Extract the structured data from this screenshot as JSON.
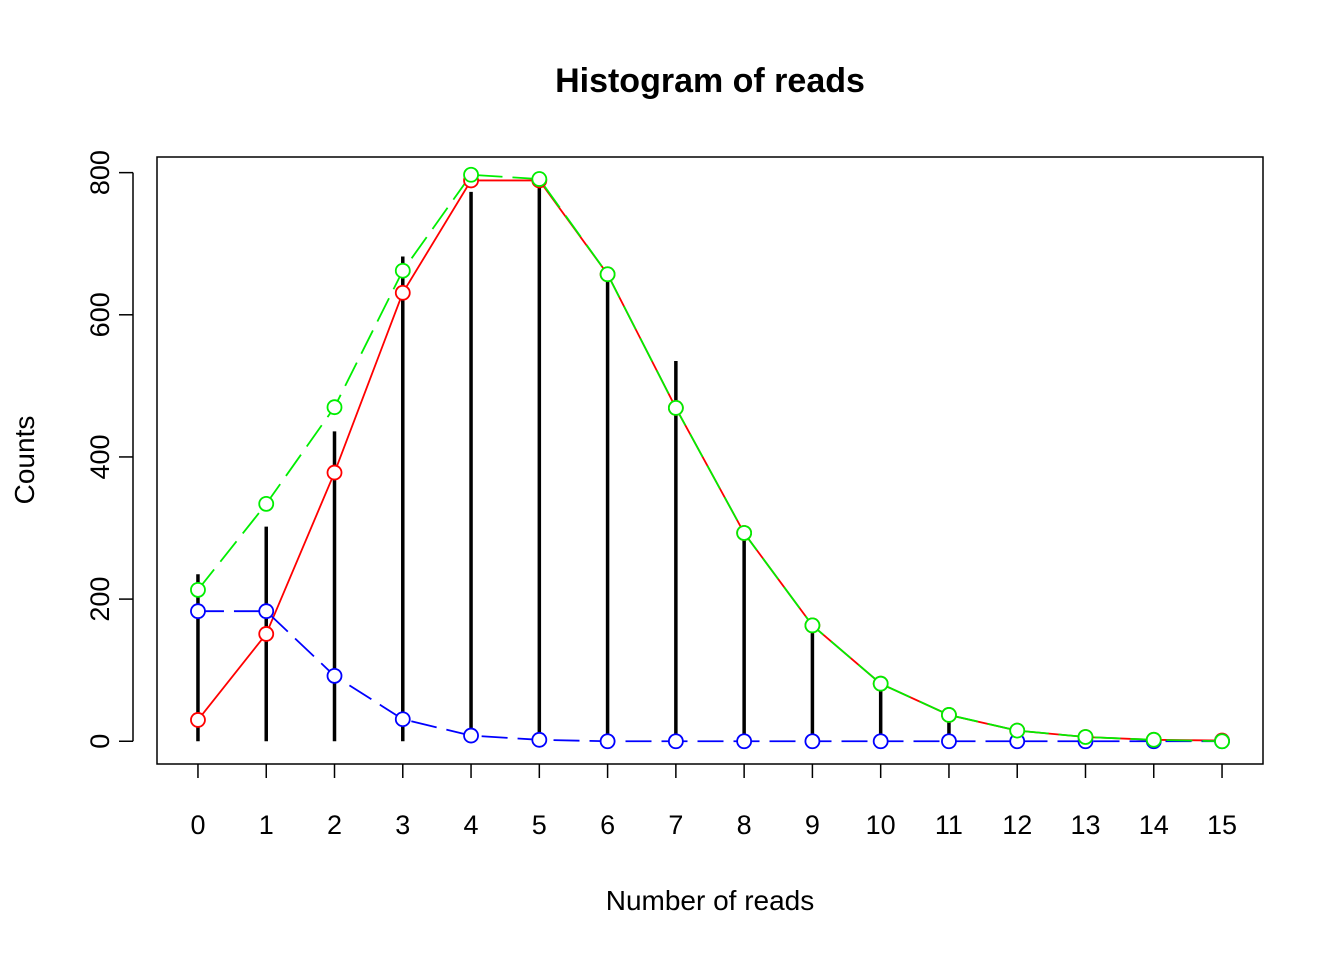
{
  "chart_data": {
    "type": "line",
    "title": "Histogram of reads",
    "xlabel": "Number of reads",
    "ylabel": "Counts",
    "x": [
      0,
      1,
      2,
      3,
      4,
      5,
      6,
      7,
      8,
      9,
      10,
      11,
      12,
      13,
      14,
      15
    ],
    "xticks": [
      "0",
      "1",
      "2",
      "3",
      "4",
      "5",
      "6",
      "7",
      "8",
      "9",
      "10",
      "11",
      "12",
      "13",
      "14",
      "15"
    ],
    "yticks": [
      "0",
      "200",
      "400",
      "600",
      "800"
    ],
    "ytick_values": [
      0,
      200,
      400,
      600,
      800
    ],
    "xlim": [
      -0.6,
      15.6
    ],
    "ylim": [
      -32,
      822
    ],
    "grid": false,
    "legend": "none",
    "histogram": {
      "color": "#000000",
      "values": [
        235,
        302,
        436,
        682,
        773,
        785,
        662,
        535,
        288,
        165,
        76,
        30,
        18,
        6,
        3,
        3
      ]
    },
    "series": [
      {
        "color": "#ff0000",
        "linestyle": "solid",
        "values": [
          30,
          151,
          378,
          631,
          789,
          789,
          657,
          469,
          293,
          163,
          81,
          37,
          15,
          6,
          2,
          1
        ]
      },
      {
        "color": "#0000ff",
        "linestyle": "dashed",
        "values": [
          183,
          183,
          92,
          31,
          8,
          2,
          0,
          0,
          0,
          0,
          0,
          0,
          0,
          0,
          0,
          0
        ]
      },
      {
        "color": "#00ee00",
        "linestyle": "dashed",
        "values": [
          213,
          334,
          470,
          662,
          797,
          791,
          657,
          469,
          293,
          163,
          81,
          37,
          15,
          6,
          2,
          0
        ]
      }
    ]
  }
}
